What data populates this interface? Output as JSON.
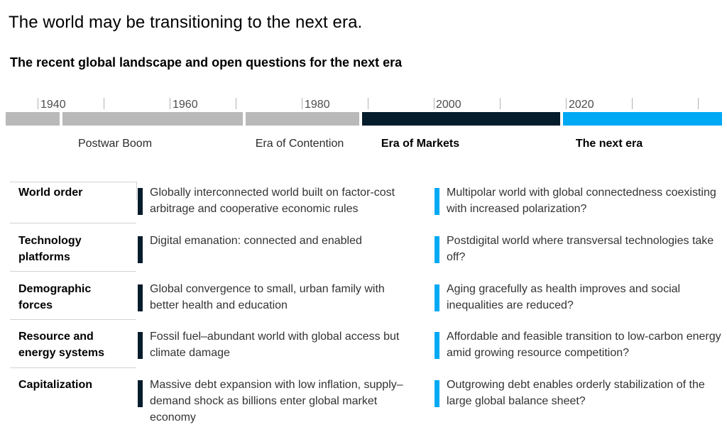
{
  "title": "The world may be transitioning to the next era.",
  "subtitle": "The recent global landscape and open questions for the next era",
  "timeline": {
    "years": [
      "1940",
      "1960",
      "1980",
      "2000",
      "2020"
    ],
    "eras": [
      {
        "name": "Postwar Boom",
        "color": "#b9b9b9"
      },
      {
        "name": "Era of Contention",
        "color": "#b9b9b9"
      },
      {
        "name": "Era of Markets",
        "color": "#051c2c"
      },
      {
        "name": "The next era",
        "color": "#00a9f4"
      }
    ]
  },
  "colors": {
    "recent": "#051c2c",
    "next": "#00a9f4",
    "past": "#b9b9b9"
  },
  "rows": [
    {
      "label": "World order",
      "recent": "Globally interconnected world built on factor-cost arbitrage and cooperative economic rules",
      "next": "Multipolar world with global connectedness coexisting with increased polarization?"
    },
    {
      "label": "Technology platforms",
      "recent": "Digital emanation: connected and enabled",
      "next": "Postdigital world where transversal technologies take off?"
    },
    {
      "label": "Demographic forces",
      "recent": "Global convergence to small, urban family with better health and education",
      "next": "Aging gracefully as health improves and social inequalities are reduced?"
    },
    {
      "label": "Resource and energy systems",
      "recent": "Fossil fuel–abundant world with global access but climate damage",
      "next": "Affordable and feasible transition to low-carbon energy amid growing resource competition?"
    },
    {
      "label": "Capitalization",
      "recent": "Massive debt expansion with low inflation, supply–demand shock as billions enter global market economy",
      "next": "Outgrowing debt enables orderly stabilization of the large global balance sheet?"
    }
  ]
}
